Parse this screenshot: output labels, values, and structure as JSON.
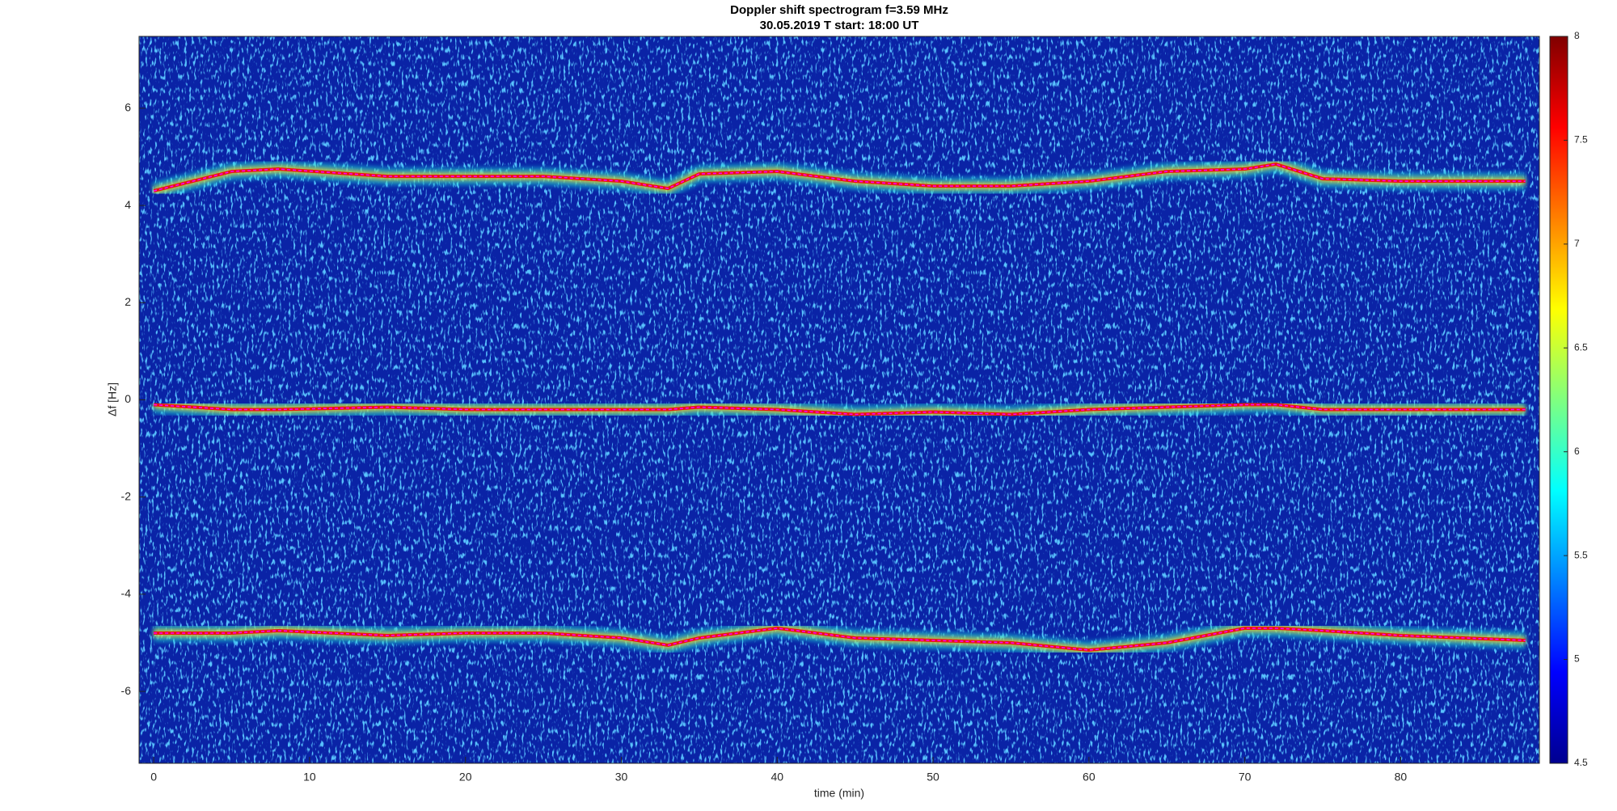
{
  "chart_data": {
    "type": "spectrogram",
    "title": "Doppler shift spectrogram f=3.59 MHz",
    "subtitle": "30.05.2019    T start: 18:00 UT",
    "x_label": "time (min)",
    "y_label": "Δf [Hz]",
    "xlim": [
      -0.94,
      88.9
    ],
    "ylim": [
      -7.48,
      7.48
    ],
    "xticks": [
      0,
      10,
      20,
      30,
      40,
      50,
      60,
      70,
      80
    ],
    "yticks": [
      -6,
      -4,
      -2,
      0,
      2,
      4,
      6
    ],
    "clim": [
      4.5,
      8
    ],
    "cticks": [
      4.5,
      5,
      5.5,
      6,
      6.5,
      7,
      7.5,
      8
    ],
    "x": [
      0,
      5,
      8,
      15,
      20,
      25,
      30,
      33,
      35,
      40,
      45,
      50,
      55,
      60,
      65,
      70,
      72,
      75,
      80,
      88
    ],
    "series": [
      {
        "color": "#ff00ff",
        "values": [
          4.3,
          4.7,
          4.75,
          4.6,
          4.6,
          4.6,
          4.5,
          4.35,
          4.65,
          4.7,
          4.5,
          4.4,
          4.4,
          4.5,
          4.7,
          4.75,
          4.85,
          4.55,
          4.5,
          4.5
        ]
      },
      {
        "color": "#ff00ff",
        "values": [
          -0.1,
          -0.2,
          -0.2,
          -0.15,
          -0.2,
          -0.2,
          -0.2,
          -0.2,
          -0.15,
          -0.2,
          -0.3,
          -0.25,
          -0.3,
          -0.2,
          -0.15,
          -0.1,
          -0.1,
          -0.2,
          -0.2,
          -0.2
        ]
      },
      {
        "color": "#ff00ff",
        "values": [
          -4.8,
          -4.8,
          -4.75,
          -4.85,
          -4.8,
          -4.8,
          -4.9,
          -5.05,
          -4.9,
          -4.7,
          -4.9,
          -4.95,
          -5.0,
          -5.15,
          -5.0,
          -4.7,
          -4.7,
          -4.75,
          -4.85,
          -4.95
        ]
      }
    ]
  }
}
